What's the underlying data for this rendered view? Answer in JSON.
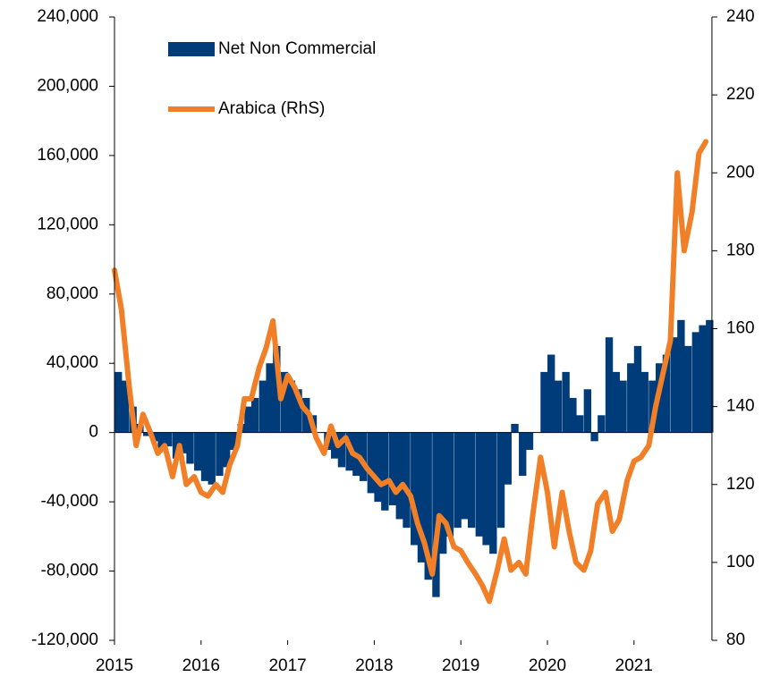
{
  "chart_data": {
    "type": "bar-line",
    "x": [
      2015,
      2015.08,
      2015.17,
      2015.25,
      2015.33,
      2015.42,
      2015.5,
      2015.58,
      2015.67,
      2015.75,
      2015.83,
      2015.92,
      2016,
      2016.08,
      2016.17,
      2016.25,
      2016.33,
      2016.42,
      2016.5,
      2016.58,
      2016.67,
      2016.75,
      2016.83,
      2016.92,
      2017,
      2017.08,
      2017.17,
      2017.25,
      2017.33,
      2017.42,
      2017.5,
      2017.58,
      2017.67,
      2017.75,
      2017.83,
      2017.92,
      2018,
      2018.08,
      2018.17,
      2018.25,
      2018.33,
      2018.42,
      2018.5,
      2018.58,
      2018.67,
      2018.75,
      2018.83,
      2018.92,
      2019,
      2019.08,
      2019.17,
      2019.25,
      2019.33,
      2019.42,
      2019.5,
      2019.58,
      2019.67,
      2019.75,
      2019.83,
      2019.92,
      2020,
      2020.08,
      2020.17,
      2020.25,
      2020.33,
      2020.42,
      2020.5,
      2020.58,
      2020.67,
      2020.75,
      2020.83,
      2020.92,
      2021,
      2021.08,
      2021.17,
      2021.25,
      2021.33,
      2021.42,
      2021.5,
      2021.58,
      2021.67,
      2021.75,
      2021.83
    ],
    "series": [
      {
        "name": "Net Non Commercial",
        "color": "#003b7a",
        "type": "bar",
        "values": [
          35000,
          30000,
          15000,
          5000,
          -2000,
          -5000,
          -10000,
          -8000,
          -15000,
          -12000,
          -18000,
          -22000,
          -28000,
          -30000,
          -25000,
          -20000,
          -10000,
          5000,
          15000,
          20000,
          30000,
          40000,
          50000,
          35000,
          30000,
          25000,
          20000,
          10000,
          0,
          -10000,
          -15000,
          -20000,
          -22000,
          -25000,
          -28000,
          -35000,
          -40000,
          -45000,
          -42000,
          -50000,
          -55000,
          -65000,
          -75000,
          -85000,
          -95000,
          -70000,
          -60000,
          -55000,
          -50000,
          -55000,
          -60000,
          -65000,
          -70000,
          -55000,
          -30000,
          5000,
          -25000,
          -10000,
          0,
          35000,
          45000,
          30000,
          35000,
          20000,
          10000,
          25000,
          -5000,
          10000,
          55000,
          35000,
          30000,
          40000,
          50000,
          35000,
          30000,
          40000,
          45000,
          55000,
          65000,
          50000,
          58000,
          62000,
          65000
        ]
      },
      {
        "name": "Arabica (RhS)",
        "color": "#f07f27",
        "type": "line",
        "axis": "y2",
        "values": [
          175,
          165,
          145,
          130,
          138,
          133,
          128,
          130,
          122,
          130,
          120,
          122,
          118,
          117,
          120,
          118,
          125,
          130,
          142,
          142,
          150,
          155,
          162,
          142,
          148,
          145,
          140,
          138,
          132,
          128,
          135,
          130,
          132,
          128,
          127,
          124,
          122,
          120,
          121,
          118,
          120,
          117,
          110,
          105,
          97,
          112,
          110,
          104,
          103,
          100,
          97,
          94,
          90,
          98,
          106,
          98,
          100,
          97,
          112,
          127,
          118,
          104,
          118,
          108,
          100,
          98,
          103,
          115,
          118,
          108,
          111,
          121,
          126,
          127,
          130,
          140,
          148,
          157,
          200,
          180,
          190,
          205,
          208
        ]
      }
    ],
    "xlim": [
      2015,
      2021.9
    ],
    "xticks": [
      2015,
      2016,
      2017,
      2018,
      2019,
      2020,
      2021
    ],
    "ylim": [
      -120000,
      240000
    ],
    "yticks": [
      {
        "value": -120000,
        "label": "-120,000"
      },
      {
        "value": -80000,
        "label": "-80,000"
      },
      {
        "value": -40000,
        "label": "-40,000"
      },
      0,
      {
        "value": 40000,
        "label": "40,000"
      },
      {
        "value": 80000,
        "label": "80,000"
      },
      {
        "value": 120000,
        "label": "120,000"
      },
      {
        "value": 160000,
        "label": "160,000"
      },
      {
        "value": 200000,
        "label": "200,000"
      },
      {
        "value": 240000,
        "label": "240,000"
      }
    ],
    "y2lim": [
      80,
      240
    ],
    "y2ticks": [
      80,
      100,
      120,
      140,
      160,
      180,
      200,
      220,
      240
    ],
    "legend": "top-left"
  }
}
